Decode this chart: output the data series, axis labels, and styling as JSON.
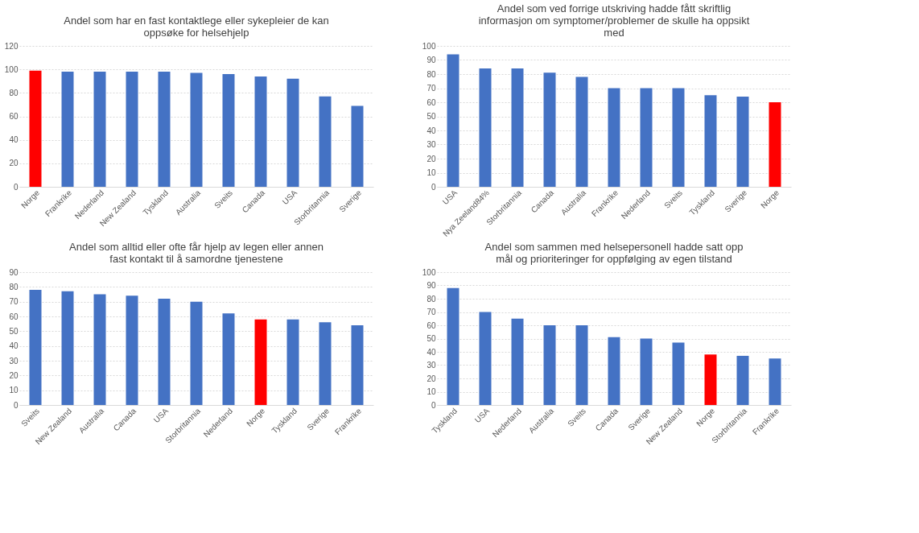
{
  "chart_data": [
    {
      "type": "bar",
      "title": "Andel som har en fast kontaktlege eller sykepleier  de kan\noppsøke for helsehjelp",
      "categories": [
        "Norge",
        "Frankrike",
        "Nederland",
        "New Zealand",
        "Tyskland",
        "Australia",
        "Sveits",
        "Canada",
        "USA",
        "Storbritannia",
        "Sverige"
      ],
      "values": [
        99,
        98,
        98,
        98,
        98,
        97,
        96,
        94,
        92,
        77,
        69
      ],
      "colors": [
        "#ff0000",
        "#4472c4",
        "#4472c4",
        "#4472c4",
        "#4472c4",
        "#4472c4",
        "#4472c4",
        "#4472c4",
        "#4472c4",
        "#4472c4",
        "#4472c4"
      ],
      "ylim": [
        0,
        120
      ],
      "yticks": [
        0,
        20,
        40,
        60,
        80,
        100,
        120
      ],
      "grid": "y"
    },
    {
      "type": "bar",
      "title": "Andel som ved forrige utskriving hadde fått skriftlig\ninformasjon om symptomer/problemer  de skulle ha oppsikt\nmed",
      "categories": [
        "USA",
        "Nya Zeeland84%",
        "Storbritannia",
        "Canada",
        "Australia",
        "Frankrike",
        "Nederland",
        "Sveits",
        "Tyskland",
        "Sverige",
        "Norge"
      ],
      "values": [
        94,
        84,
        84,
        81,
        78,
        70,
        70,
        70,
        65,
        64,
        60
      ],
      "colors": [
        "#4472c4",
        "#4472c4",
        "#4472c4",
        "#4472c4",
        "#4472c4",
        "#4472c4",
        "#4472c4",
        "#4472c4",
        "#4472c4",
        "#4472c4",
        "#ff0000"
      ],
      "ylim": [
        0,
        100
      ],
      "yticks": [
        0,
        10,
        20,
        30,
        40,
        50,
        60,
        70,
        80,
        90,
        100
      ],
      "grid": "y"
    },
    {
      "type": "bar",
      "title": "Andel som alltid eller  ofte får hjelp av legen eller annen\nfast kontakt til å samordne tjenestene",
      "categories": [
        "Sveits",
        "New Zealand",
        "Australia",
        "Canada",
        "USA",
        "Storbritannia",
        "Nederland",
        "Norge",
        "Tyskland",
        "Sverige",
        "Frankrike"
      ],
      "values": [
        78,
        77,
        75,
        74,
        72,
        70,
        62,
        58,
        58,
        56,
        54
      ],
      "colors": [
        "#4472c4",
        "#4472c4",
        "#4472c4",
        "#4472c4",
        "#4472c4",
        "#4472c4",
        "#4472c4",
        "#ff0000",
        "#4472c4",
        "#4472c4",
        "#4472c4"
      ],
      "ylim": [
        0,
        90
      ],
      "yticks": [
        0,
        10,
        20,
        30,
        40,
        50,
        60,
        70,
        80,
        90
      ],
      "grid": "y"
    },
    {
      "type": "bar",
      "title": "Andel som sammen med helsepersonell  hadde satt opp\nmål og prioriteringer for oppfølging av egen tilstand",
      "categories": [
        "Tyskland",
        "USA",
        "Nederland",
        "Australia",
        "Sveits",
        "Canada",
        "Sverige",
        "New Zealand",
        "Norge",
        "Storbritannia",
        "Frankrike"
      ],
      "values": [
        88,
        70,
        65,
        60,
        60,
        51,
        50,
        47,
        38,
        37,
        35
      ],
      "colors": [
        "#4472c4",
        "#4472c4",
        "#4472c4",
        "#4472c4",
        "#4472c4",
        "#4472c4",
        "#4472c4",
        "#4472c4",
        "#ff0000",
        "#4472c4",
        "#4472c4"
      ],
      "ylim": [
        0,
        100
      ],
      "yticks": [
        0,
        10,
        20,
        30,
        40,
        50,
        60,
        70,
        80,
        90,
        100
      ],
      "grid": "y"
    }
  ]
}
